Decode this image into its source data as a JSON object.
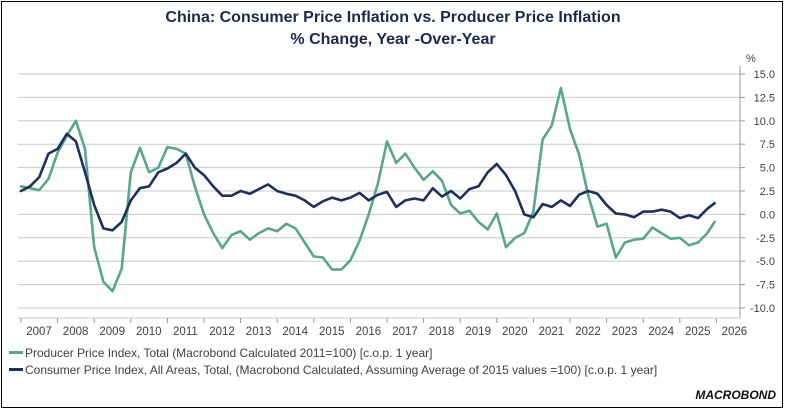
{
  "chart_data": {
    "type": "line",
    "title": "China: Consumer Price Inflation vs. Producer Price Inflation",
    "subtitle": "% Change, Year -Over-Year",
    "ylabel": "%",
    "xlabel": "",
    "ylim": [
      -10.0,
      15.0
    ],
    "xlim": [
      2007.0,
      2026.6
    ],
    "y_ticks": [
      "15.0",
      "12.5",
      "10.0",
      "7.5",
      "5.0",
      "2.5",
      "0.0",
      "-2.5",
      "-5.0",
      "-7.5",
      "-10.0"
    ],
    "y_tick_values": [
      15.0,
      12.5,
      10.0,
      7.5,
      5.0,
      2.5,
      0.0,
      -2.5,
      -5.0,
      -7.5,
      -10.0
    ],
    "x_ticks": [
      "2007",
      "2008",
      "2009",
      "2010",
      "2011",
      "2012",
      "2013",
      "2014",
      "2015",
      "2016",
      "2017",
      "2018",
      "2019",
      "2020",
      "2021",
      "2022",
      "2023",
      "2024",
      "2025",
      "2026"
    ],
    "grid": true,
    "y_axis_side": "right",
    "legend_position": "bottom-left",
    "x": [
      2007.0,
      2007.25,
      2007.5,
      2007.75,
      2008.0,
      2008.25,
      2008.5,
      2008.75,
      2009.0,
      2009.25,
      2009.5,
      2009.75,
      2010.0,
      2010.25,
      2010.5,
      2010.75,
      2011.0,
      2011.25,
      2011.5,
      2011.75,
      2012.0,
      2012.25,
      2012.5,
      2012.75,
      2013.0,
      2013.25,
      2013.5,
      2013.75,
      2014.0,
      2014.25,
      2014.5,
      2014.75,
      2015.0,
      2015.25,
      2015.5,
      2015.75,
      2016.0,
      2016.25,
      2016.5,
      2016.75,
      2017.0,
      2017.25,
      2017.5,
      2017.75,
      2018.0,
      2018.25,
      2018.5,
      2018.75,
      2019.0,
      2019.25,
      2019.5,
      2019.75,
      2020.0,
      2020.25,
      2020.5,
      2020.75,
      2021.0,
      2021.25,
      2021.5,
      2021.75,
      2022.0,
      2022.25,
      2022.5,
      2022.75,
      2023.0,
      2023.25,
      2023.5,
      2023.75,
      2024.0,
      2024.25,
      2024.5,
      2024.75,
      2025.0,
      2025.25,
      2025.5,
      2025.75,
      2025.95
    ],
    "series": [
      {
        "name": "Producer Price Index, Total (Macrobond Calculated 2011=100) [c.o.p. 1 year]",
        "color": "#5aa58c",
        "values": [
          3.0,
          2.8,
          2.6,
          3.8,
          6.6,
          8.4,
          10.0,
          7.0,
          -3.5,
          -7.2,
          -8.2,
          -5.8,
          4.5,
          7.1,
          4.5,
          5.0,
          7.2,
          7.0,
          6.5,
          3.0,
          0.0,
          -2.0,
          -3.6,
          -2.2,
          -1.8,
          -2.7,
          -2.0,
          -1.5,
          -1.8,
          -1.0,
          -1.5,
          -3.0,
          -4.5,
          -4.6,
          -5.9,
          -5.9,
          -4.9,
          -2.8,
          0.0,
          3.3,
          7.8,
          5.5,
          6.5,
          5.0,
          3.7,
          4.6,
          3.6,
          1.0,
          0.1,
          0.4,
          -0.8,
          -1.6,
          0.1,
          -3.5,
          -2.5,
          -2.0,
          0.3,
          8.0,
          9.5,
          13.5,
          9.1,
          6.4,
          2.0,
          -1.3,
          -1.0,
          -4.6,
          -3.0,
          -2.7,
          -2.6,
          -1.4,
          -2.0,
          -2.6,
          -2.5,
          -3.3,
          -3.0,
          -2.0,
          -0.8
        ]
      },
      {
        "name": "Consumer Price Index, All Areas, Total, (Macrobond Calculated, Assuming Average of 2015 values =100) [c.o.p. 1 year]",
        "color": "#1f3158",
        "values": [
          2.5,
          3.0,
          4.0,
          6.5,
          7.0,
          8.6,
          7.8,
          4.5,
          1.0,
          -1.5,
          -1.7,
          -0.8,
          1.5,
          2.8,
          3.0,
          4.5,
          4.9,
          5.5,
          6.5,
          5.0,
          4.2,
          3.0,
          2.0,
          2.0,
          2.5,
          2.2,
          2.7,
          3.2,
          2.5,
          2.2,
          2.0,
          1.5,
          0.8,
          1.4,
          1.8,
          1.5,
          1.8,
          2.3,
          1.5,
          2.1,
          2.4,
          0.8,
          1.5,
          1.7,
          1.5,
          2.8,
          1.9,
          2.5,
          1.7,
          2.7,
          3.0,
          4.5,
          5.4,
          4.2,
          2.5,
          0.0,
          -0.3,
          1.1,
          0.8,
          1.5,
          0.9,
          2.1,
          2.5,
          2.2,
          1.0,
          0.1,
          0.0,
          -0.3,
          0.3,
          0.3,
          0.5,
          0.3,
          -0.4,
          -0.1,
          -0.4,
          0.6,
          1.2
        ]
      }
    ]
  },
  "legend": {
    "ppi_label": "Producer Price Index, Total (Macrobond Calculated 2011=100) [c.o.p. 1 year]",
    "cpi_label": "Consumer Price Index, All Areas, Total, (Macrobond Calculated, Assuming Average of 2015 values =100) [c.o.p. 1 year]"
  },
  "branding": {
    "logo_text": "MACROBOND"
  }
}
